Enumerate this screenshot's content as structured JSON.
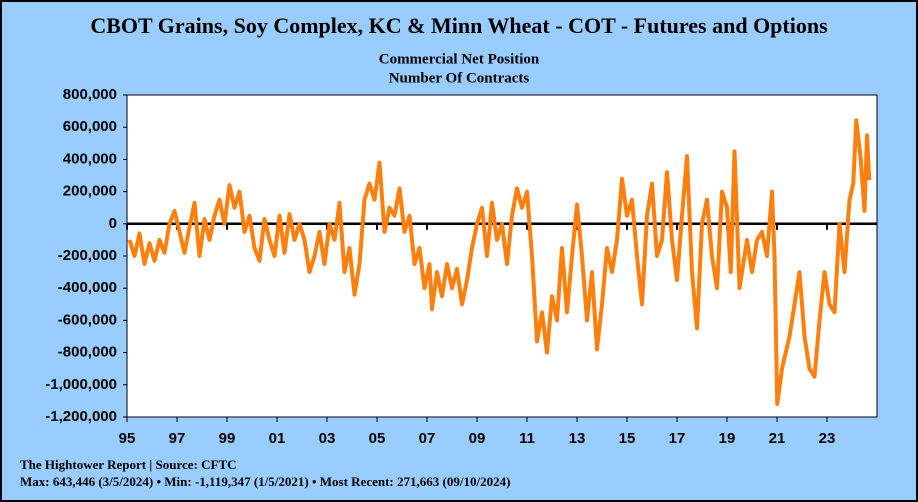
{
  "chart_data": {
    "type": "line",
    "title": "CBOT Grains, Soy Complex, KC & Minn Wheat - COT - Futures and Options",
    "subtitle": "Commercial Net Position",
    "y_label": "Number Of Contracts",
    "source": "The Hightower Report | Source: CFTC",
    "note": "Max: 643,446 (3/5/2024)  •  Min: -1,119,347 (1/5/2021) • Most Recent: 271,663 (09/10/2024)",
    "color": "#ff7f0e",
    "xlim": [
      1995,
      2025
    ],
    "ylim": [
      -1200000,
      800000
    ],
    "xticks": [
      {
        "value": 1995,
        "label": "95"
      },
      {
        "value": 1997,
        "label": "97"
      },
      {
        "value": 1999,
        "label": "99"
      },
      {
        "value": 2001,
        "label": "01"
      },
      {
        "value": 2003,
        "label": "03"
      },
      {
        "value": 2005,
        "label": "05"
      },
      {
        "value": 2007,
        "label": "07"
      },
      {
        "value": 2009,
        "label": "09"
      },
      {
        "value": 2011,
        "label": "11"
      },
      {
        "value": 2013,
        "label": "13"
      },
      {
        "value": 2015,
        "label": "15"
      },
      {
        "value": 2017,
        "label": "17"
      },
      {
        "value": 2019,
        "label": "19"
      },
      {
        "value": 2021,
        "label": "21"
      },
      {
        "value": 2023,
        "label": "23"
      }
    ],
    "yticks": [
      {
        "value": 800000,
        "label": "800,000"
      },
      {
        "value": 600000,
        "label": "600,000"
      },
      {
        "value": 400000,
        "label": "400,000"
      },
      {
        "value": 200000,
        "label": "200,000"
      },
      0,
      {
        "value": -200000,
        "label": "-200,000"
      },
      {
        "value": -400000,
        "label": "-400,000"
      },
      {
        "value": -600000,
        "label": "-600,000"
      },
      {
        "value": -800000,
        "label": "-800,000"
      },
      {
        "value": -1000000,
        "label": "-1,000,000"
      },
      {
        "value": -1200000,
        "label": "-1,200,000"
      }
    ],
    "x": [
      1995.1,
      1995.3,
      1995.5,
      1995.7,
      1995.9,
      1996.1,
      1996.3,
      1996.5,
      1996.7,
      1996.9,
      1997.1,
      1997.3,
      1997.5,
      1997.7,
      1997.9,
      1998.1,
      1998.3,
      1998.5,
      1998.7,
      1998.9,
      1999.1,
      1999.3,
      1999.5,
      1999.7,
      1999.9,
      2000.1,
      2000.3,
      2000.5,
      2000.7,
      2000.9,
      2001.1,
      2001.3,
      2001.5,
      2001.7,
      2001.9,
      2002.1,
      2002.3,
      2002.5,
      2002.7,
      2002.9,
      2003.1,
      2003.3,
      2003.5,
      2003.7,
      2003.9,
      2004.1,
      2004.3,
      2004.5,
      2004.7,
      2004.9,
      2005.1,
      2005.3,
      2005.5,
      2005.7,
      2005.9,
      2006.1,
      2006.3,
      2006.5,
      2006.7,
      2006.9,
      2007.1,
      2007.2,
      2007.4,
      2007.6,
      2007.8,
      2008.0,
      2008.2,
      2008.4,
      2008.6,
      2008.8,
      2009.0,
      2009.2,
      2009.4,
      2009.6,
      2009.8,
      2010.0,
      2010.2,
      2010.4,
      2010.6,
      2010.8,
      2011.0,
      2011.2,
      2011.4,
      2011.6,
      2011.8,
      2012.0,
      2012.2,
      2012.4,
      2012.6,
      2012.8,
      2013.0,
      2013.2,
      2013.4,
      2013.6,
      2013.8,
      2014.0,
      2014.2,
      2014.4,
      2014.6,
      2014.8,
      2015.0,
      2015.2,
      2015.4,
      2015.6,
      2015.8,
      2016.0,
      2016.2,
      2016.4,
      2016.6,
      2016.8,
      2017.0,
      2017.2,
      2017.4,
      2017.6,
      2017.8,
      2018.0,
      2018.2,
      2018.4,
      2018.6,
      2018.8,
      2019.0,
      2019.15,
      2019.3,
      2019.5,
      2019.8,
      2020.0,
      2020.2,
      2020.4,
      2020.6,
      2020.8,
      2020.9,
      2021.01,
      2021.2,
      2021.5,
      2021.7,
      2021.9,
      2022.1,
      2022.3,
      2022.5,
      2022.7,
      2022.9,
      2023.1,
      2023.3,
      2023.5,
      2023.7,
      2023.9,
      2024.05,
      2024.17,
      2024.35,
      2024.5,
      2024.6,
      2024.69
    ],
    "values": [
      -100000,
      -200000,
      -60000,
      -250000,
      -120000,
      -230000,
      -100000,
      -180000,
      0,
      80000,
      -50000,
      -180000,
      -20000,
      130000,
      -200000,
      30000,
      -100000,
      50000,
      150000,
      0,
      240000,
      100000,
      200000,
      -50000,
      50000,
      -150000,
      -230000,
      30000,
      -100000,
      -200000,
      50000,
      -180000,
      60000,
      -100000,
      0,
      -100000,
      -300000,
      -200000,
      -50000,
      -250000,
      0,
      -100000,
      130000,
      -300000,
      -150000,
      -440000,
      -250000,
      150000,
      250000,
      150000,
      380000,
      -50000,
      100000,
      50000,
      220000,
      -50000,
      50000,
      -250000,
      -150000,
      -400000,
      -250000,
      -530000,
      -300000,
      -450000,
      -250000,
      -400000,
      -280000,
      -500000,
      -350000,
      -150000,
      0,
      100000,
      -200000,
      130000,
      -100000,
      0,
      -250000,
      50000,
      220000,
      100000,
      200000,
      -200000,
      -730000,
      -550000,
      -800000,
      -450000,
      -600000,
      -150000,
      -550000,
      -200000,
      120000,
      -200000,
      -600000,
      -300000,
      -780000,
      -500000,
      -150000,
      -300000,
      -100000,
      280000,
      50000,
      150000,
      -200000,
      -500000,
      50000,
      250000,
      -200000,
      -100000,
      320000,
      -100000,
      -350000,
      50000,
      420000,
      -300000,
      -650000,
      0,
      150000,
      -200000,
      -400000,
      200000,
      100000,
      -300000,
      450000,
      -400000,
      -100000,
      -300000,
      -100000,
      -50000,
      -200000,
      200000,
      -200000,
      -1119347,
      -900000,
      -700000,
      -500000,
      -300000,
      -700000,
      -900000,
      -950000,
      -600000,
      -300000,
      -500000,
      -550000,
      0,
      -300000,
      150000,
      250000,
      643446,
      400000,
      80000,
      550000,
      271663
    ]
  }
}
